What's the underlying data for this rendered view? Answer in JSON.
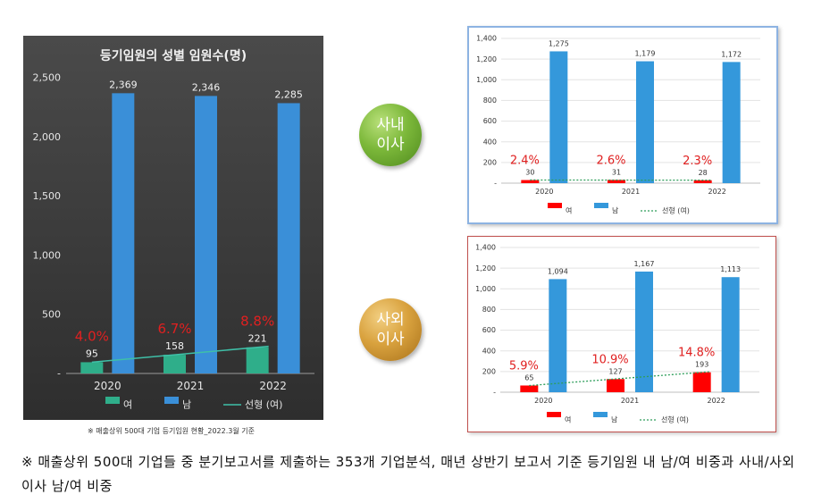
{
  "main_chart": {
    "title": "등기임원의 성별 임원수(명)",
    "source_note": "※ 매출상위 500대 기업 등기임원 현황_2022.3월 기준"
  },
  "circles": {
    "inhouse": "사내\n이사",
    "outside": "사외\n이사"
  },
  "footnote": "※ 매출상위 500대 기업들 중 분기보고서를 제출하는 353개 기업분석, 매년 상반기 보고서 기준 등기임원 내 남/여 비중과 사내/사외이사 남/여 비중",
  "colors": {
    "female_main": "#2fae8a",
    "male_main": "#3a8fd8",
    "female_small": "#ff0000",
    "male_small": "#3498db",
    "trend_main": "#3fc0a8",
    "trend_small": "#2e9e5b",
    "pct_label": "#e02020"
  },
  "chart_data": [
    {
      "type": "bar",
      "title": "등기임원의 성별 임원수(명)",
      "categories": [
        "2020",
        "2021",
        "2022"
      ],
      "series": [
        {
          "name": "여",
          "values": [
            95,
            158,
            221
          ]
        },
        {
          "name": "남",
          "values": [
            2369,
            2346,
            2285
          ]
        }
      ],
      "trendline": {
        "name": "선형 (여)"
      },
      "percent_labels": [
        "4.0%",
        "6.7%",
        "8.8%"
      ],
      "y_ticks": [
        "-",
        "500",
        "1,000",
        "1,500",
        "2,000",
        "2,500"
      ],
      "value_labels_female": [
        "95",
        "158",
        "221"
      ],
      "value_labels_male": [
        "2,369",
        "2,346",
        "2,285"
      ],
      "ylim": [
        0,
        2500
      ],
      "legend_position": "bottom",
      "grid": false
    },
    {
      "type": "bar",
      "categories": [
        "2020",
        "2021",
        "2022"
      ],
      "series": [
        {
          "name": "여",
          "values": [
            30,
            31,
            28
          ]
        },
        {
          "name": "남",
          "values": [
            1275,
            1179,
            1172
          ]
        }
      ],
      "trendline": {
        "name": "선형 (여)"
      },
      "percent_labels": [
        "2.4%",
        "2.6%",
        "2.3%"
      ],
      "y_ticks": [
        "-",
        "200",
        "400",
        "600",
        "800",
        "1,000",
        "1,200",
        "1,400"
      ],
      "value_labels_female": [
        "30",
        "31",
        "28"
      ],
      "value_labels_male": [
        "1,275",
        "1,179",
        "1,172"
      ],
      "ylim": [
        0,
        1400
      ],
      "legend_position": "bottom",
      "grid": true
    },
    {
      "type": "bar",
      "categories": [
        "2020",
        "2021",
        "2022"
      ],
      "series": [
        {
          "name": "여",
          "values": [
            65,
            127,
            193
          ]
        },
        {
          "name": "남",
          "values": [
            1094,
            1167,
            1113
          ]
        }
      ],
      "trendline": {
        "name": "선형 (여)"
      },
      "percent_labels": [
        "5.9%",
        "10.9%",
        "14.8%"
      ],
      "y_ticks": [
        "-",
        "200",
        "400",
        "600",
        "800",
        "1,000",
        "1,200",
        "1,400"
      ],
      "value_labels_female": [
        "65",
        "127",
        "193"
      ],
      "value_labels_male": [
        "1,094",
        "1,167",
        "1,113"
      ],
      "ylim": [
        0,
        1400
      ],
      "legend_position": "bottom",
      "grid": true
    }
  ]
}
